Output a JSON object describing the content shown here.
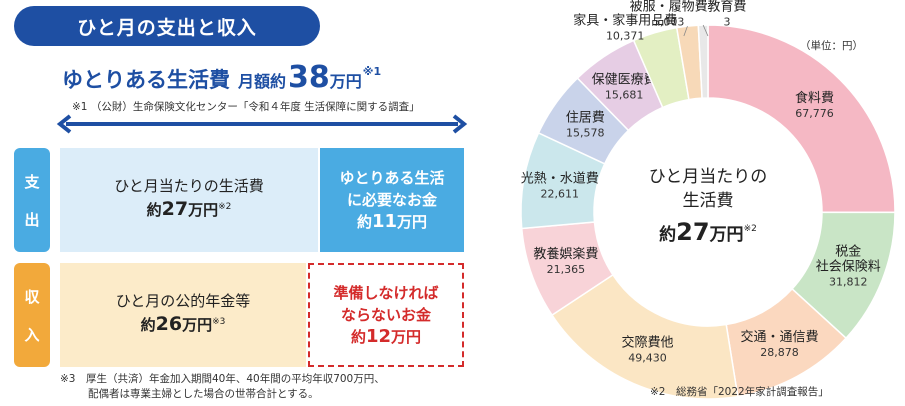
{
  "left": {
    "title": "ひと月の支出と収入",
    "headline": {
      "main": "ゆとりある生活費",
      "sub": "月額約",
      "number": "38",
      "unit": "万円",
      "note": "※1"
    },
    "footnote1": "※1 （公財）生命保険文化センター「令和４年度 生活保障に関する調査」",
    "expense_tab": [
      "支",
      "出"
    ],
    "income_tab": [
      "収",
      "入"
    ],
    "living_cost": {
      "line1": "ひと月当たりの生活費",
      "prefix": "約",
      "number": "27",
      "unit": "万円",
      "note": "※2"
    },
    "need": {
      "line1": "ゆとりある生活",
      "line2": "に必要なお金",
      "prefix": "約",
      "number": "11",
      "unit": "万円"
    },
    "pension": {
      "line1": "ひと月の公的年金等",
      "prefix": "約",
      "number": "26",
      "unit": "万円",
      "note": "※3"
    },
    "prepare": {
      "line1": "準備しなければ",
      "line2": "ならないお金",
      "prefix": "約",
      "number": "12",
      "unit": "万円"
    },
    "footnote3_line1": "※3　厚生（共済）年金加入期間40年、40年間の平均年収700万円、",
    "footnote3_line2": "配偶者は専業主婦とした場合の世帯合計とする。"
  },
  "chart_data": {
    "type": "pie",
    "unit_label": "（単位：円）",
    "center": {
      "line1": "ひと月当たりの",
      "line2": "生活費",
      "prefix": "約",
      "number": "27",
      "unit": "万円",
      "note": "※2"
    },
    "footnote": "※2　総務省「2022年家計調査報告」",
    "slices": [
      {
        "label": "食料費",
        "value": 67776,
        "value_text": "67,776",
        "color": "#f5b8c4"
      },
      {
        "label": "税金\n社会保険料",
        "value": 31812,
        "value_text": "31,812",
        "color": "#c9e5c6"
      },
      {
        "label": "交通・通信費",
        "value": 28878,
        "value_text": "28,878",
        "color": "#fbd8bf"
      },
      {
        "label": "交際費他",
        "value": 49430,
        "value_text": "49,430",
        "color": "#fbe6c4"
      },
      {
        "label": "教養娯楽費",
        "value": 21365,
        "value_text": "21,365",
        "color": "#f8d3d8"
      },
      {
        "label": "光熱・水道費",
        "value": 22611,
        "value_text": "22,611",
        "color": "#cbe7ec"
      },
      {
        "label": "住居費",
        "value": 15578,
        "value_text": "15,578",
        "color": "#c9d3ea"
      },
      {
        "label": "保健医療費",
        "value": 15681,
        "value_text": "15,681",
        "color": "#e6cde4"
      },
      {
        "label": "家具・家事用品費",
        "value": 10371,
        "value_text": "10,371",
        "color": "#e3efc3"
      },
      {
        "label": "被服・履物費",
        "value": 5003,
        "value_text": "5,003",
        "color": "#f7d9b8"
      },
      {
        "label": "教育費",
        "value": 3,
        "value_text": "3",
        "color": "#e8e8e8"
      }
    ]
  },
  "colors": {
    "brand_blue": "#1e4fa3",
    "sky_blue": "#4aabe2",
    "orange": "#f2a93b",
    "red": "#d42b2b"
  }
}
